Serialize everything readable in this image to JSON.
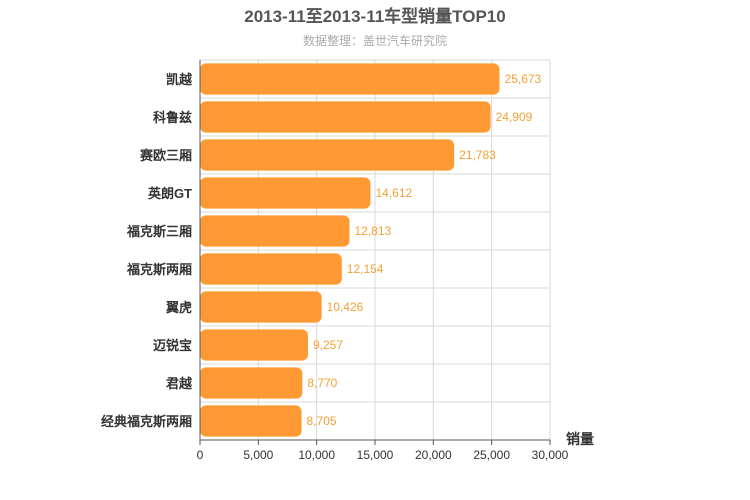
{
  "chart_data": {
    "type": "bar",
    "orientation": "horizontal",
    "title": "2013-11至2013-11车型销量TOP10",
    "subtitle": "数据整理：盖世汽车研究院",
    "xlabel": "销量",
    "ylabel": "",
    "categories": [
      "凯越",
      "科鲁兹",
      "赛欧三厢",
      "英朗GT",
      "福克斯三厢",
      "福克斯两厢",
      "翼虎",
      "迈锐宝",
      "君越",
      "经典福克斯两厢"
    ],
    "values": [
      25673,
      24909,
      21783,
      14612,
      12813,
      12154,
      10426,
      9257,
      8770,
      8705
    ],
    "value_labels": [
      "25,673",
      "24,909",
      "21,783",
      "14,612",
      "12,813",
      "12,154",
      "10,426",
      "9,257",
      "8,770",
      "8,705"
    ],
    "xlim": [
      0,
      30000
    ],
    "xticks": [
      0,
      5000,
      10000,
      15000,
      20000,
      25000,
      30000
    ],
    "xtick_labels": [
      "0",
      "5,000",
      "10,000",
      "15,000",
      "20,000",
      "25,000",
      "30,000"
    ],
    "grid": true,
    "colors": {
      "bar": "#ff9933",
      "value_label": "#f5a035"
    }
  }
}
